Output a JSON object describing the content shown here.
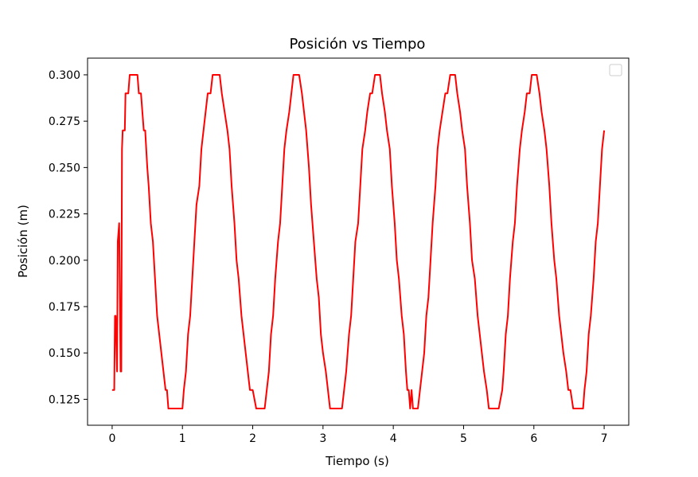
{
  "chart_data": {
    "type": "line",
    "title": "Posición vs Tiempo",
    "xlabel": "Tiempo (s)",
    "ylabel": "Posición (m)",
    "xlim": [
      -0.35,
      7.35
    ],
    "ylim": [
      0.111,
      0.309
    ],
    "xticks": [
      0,
      1,
      2,
      3,
      4,
      5,
      6,
      7
    ],
    "xtick_labels": [
      "0",
      "1",
      "2",
      "3",
      "4",
      "5",
      "6",
      "7"
    ],
    "yticks": [
      0.125,
      0.15,
      0.175,
      0.2,
      0.225,
      0.25,
      0.275,
      0.3
    ],
    "ytick_labels": [
      "0.125",
      "0.150",
      "0.175",
      "0.200",
      "0.225",
      "0.250",
      "0.275",
      "0.300"
    ],
    "grid": false,
    "legend": "upper right, empty",
    "series": [
      {
        "color": "#ff0000",
        "x": [
          0,
          0.03,
          0.04,
          0.05,
          0.07,
          0.08,
          0.1,
          0.12,
          0.13,
          0.14,
          0.15,
          0.17,
          0.18,
          0.19,
          0.21,
          0.23,
          0.25,
          0.27,
          0.29,
          0.31,
          0.33,
          0.36,
          0.38,
          0.41,
          0.43,
          0.45,
          0.47,
          0.5,
          0.52,
          0.55,
          0.58,
          0.61,
          0.64,
          0.67,
          0.7,
          0.73,
          0.76,
          0.78,
          0.8,
          0.82,
          0.85,
          0.88,
          0.92,
          0.96,
          1.0,
          1.02,
          1.05,
          1.08,
          1.11,
          1.14,
          1.17,
          1.2,
          1.24,
          1.27,
          1.3,
          1.33,
          1.36,
          1.4,
          1.43,
          1.46,
          1.5,
          1.53,
          1.56,
          1.6,
          1.64,
          1.67,
          1.7,
          1.74,
          1.77,
          1.8,
          1.84,
          1.87,
          1.9,
          1.93,
          1.96,
          2.0,
          2.05,
          2.1,
          2.15,
          2.17,
          2.2,
          2.23,
          2.26,
          2.29,
          2.32,
          2.36,
          2.39,
          2.42,
          2.45,
          2.48,
          2.52,
          2.55,
          2.58,
          2.62,
          2.66,
          2.7,
          2.73,
          2.76,
          2.8,
          2.83,
          2.87,
          2.91,
          2.94,
          2.97,
          3.0,
          3.04,
          3.07,
          3.1,
          3.15,
          3.2,
          3.25,
          3.27,
          3.3,
          3.33,
          3.37,
          3.4,
          3.43,
          3.46,
          3.5,
          3.53,
          3.56,
          3.6,
          3.63,
          3.67,
          3.7,
          3.74,
          3.77,
          3.81,
          3.84,
          3.88,
          3.91,
          3.95,
          3.98,
          4.02,
          4.05,
          4.08,
          4.12,
          4.15,
          4.18,
          4.2,
          4.22,
          4.24,
          4.26,
          4.28,
          4.3,
          4.35,
          4.38,
          4.41,
          4.44,
          4.47,
          4.5,
          4.53,
          4.56,
          4.6,
          4.63,
          4.66,
          4.7,
          4.74,
          4.77,
          4.81,
          4.84,
          4.88,
          4.91,
          4.95,
          4.98,
          5.02,
          5.05,
          5.09,
          5.12,
          5.16,
          5.2,
          5.23,
          5.26,
          5.29,
          5.33,
          5.36,
          5.4,
          5.45,
          5.5,
          5.55,
          5.57,
          5.6,
          5.63,
          5.66,
          5.7,
          5.73,
          5.76,
          5.8,
          5.83,
          5.87,
          5.9,
          5.94,
          5.97,
          6.01,
          6.04,
          6.08,
          6.11,
          6.15,
          6.18,
          6.22,
          6.25,
          6.29,
          6.32,
          6.36,
          6.39,
          6.42,
          6.46,
          6.49,
          6.52,
          6.56,
          6.6,
          6.65,
          6.7,
          6.72,
          6.75,
          6.78,
          6.81,
          6.85,
          6.88,
          6.91,
          6.94,
          6.97,
          7.0
        ],
        "y": [
          0.13,
          0.13,
          0.17,
          0.17,
          0.14,
          0.21,
          0.22,
          0.14,
          0.14,
          0.26,
          0.27,
          0.27,
          0.27,
          0.29,
          0.29,
          0.29,
          0.3,
          0.3,
          0.3,
          0.3,
          0.3,
          0.3,
          0.29,
          0.29,
          0.28,
          0.27,
          0.27,
          0.25,
          0.24,
          0.22,
          0.21,
          0.19,
          0.17,
          0.16,
          0.15,
          0.14,
          0.13,
          0.13,
          0.12,
          0.12,
          0.12,
          0.12,
          0.12,
          0.12,
          0.12,
          0.13,
          0.14,
          0.16,
          0.17,
          0.19,
          0.21,
          0.23,
          0.24,
          0.26,
          0.27,
          0.28,
          0.29,
          0.29,
          0.3,
          0.3,
          0.3,
          0.3,
          0.29,
          0.28,
          0.27,
          0.26,
          0.24,
          0.22,
          0.2,
          0.19,
          0.17,
          0.16,
          0.15,
          0.14,
          0.13,
          0.13,
          0.12,
          0.12,
          0.12,
          0.12,
          0.13,
          0.14,
          0.16,
          0.17,
          0.19,
          0.21,
          0.22,
          0.24,
          0.26,
          0.27,
          0.28,
          0.29,
          0.3,
          0.3,
          0.3,
          0.29,
          0.28,
          0.27,
          0.25,
          0.23,
          0.21,
          0.19,
          0.18,
          0.16,
          0.15,
          0.14,
          0.13,
          0.12,
          0.12,
          0.12,
          0.12,
          0.12,
          0.13,
          0.14,
          0.16,
          0.17,
          0.19,
          0.21,
          0.22,
          0.24,
          0.26,
          0.27,
          0.28,
          0.29,
          0.29,
          0.3,
          0.3,
          0.3,
          0.29,
          0.28,
          0.27,
          0.26,
          0.24,
          0.22,
          0.2,
          0.19,
          0.17,
          0.16,
          0.14,
          0.13,
          0.13,
          0.12,
          0.13,
          0.12,
          0.12,
          0.12,
          0.13,
          0.14,
          0.15,
          0.17,
          0.18,
          0.2,
          0.22,
          0.24,
          0.26,
          0.27,
          0.28,
          0.29,
          0.29,
          0.3,
          0.3,
          0.3,
          0.29,
          0.28,
          0.27,
          0.26,
          0.24,
          0.22,
          0.2,
          0.19,
          0.17,
          0.16,
          0.15,
          0.14,
          0.13,
          0.12,
          0.12,
          0.12,
          0.12,
          0.13,
          0.14,
          0.16,
          0.17,
          0.19,
          0.21,
          0.22,
          0.24,
          0.26,
          0.27,
          0.28,
          0.29,
          0.29,
          0.3,
          0.3,
          0.3,
          0.29,
          0.28,
          0.27,
          0.26,
          0.24,
          0.22,
          0.2,
          0.19,
          0.17,
          0.16,
          0.15,
          0.14,
          0.13,
          0.13,
          0.12,
          0.12,
          0.12,
          0.12,
          0.13,
          0.14,
          0.16,
          0.17,
          0.19,
          0.21,
          0.22,
          0.24,
          0.26,
          0.27
        ]
      }
    ]
  }
}
